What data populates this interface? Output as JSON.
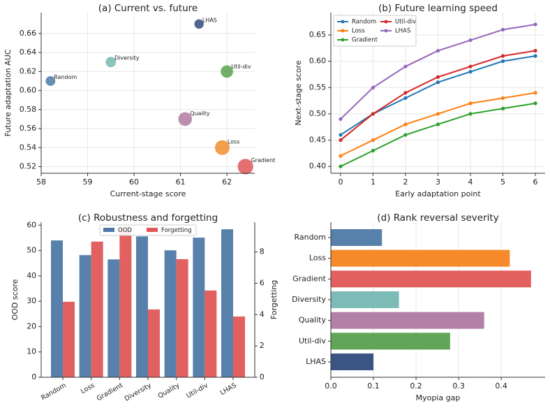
{
  "chart_data": [
    {
      "type": "scatter",
      "title": "(a) Current vs. future",
      "xlabel": "Current-stage score",
      "ylabel": "Future adaptation AUC",
      "labels": [
        "Random",
        "Diversity",
        "LHAS",
        "Util-div",
        "Quality",
        "Loss",
        "Gradient"
      ],
      "x": [
        58.2,
        59.5,
        61.4,
        62.0,
        61.1,
        61.9,
        62.4
      ],
      "values": [
        0.61,
        0.63,
        0.67,
        0.62,
        0.57,
        0.54,
        0.52
      ],
      "sizes": [
        0.12,
        0.16,
        0.1,
        0.28,
        0.36,
        0.42,
        0.47
      ],
      "colors": [
        "#4e79a7",
        "#76b7b2",
        "#2f4b7c",
        "#59a14f",
        "#b07aa1",
        "#f28e2b",
        "#e15759"
      ],
      "xlim": [
        58,
        62.6
      ],
      "xticks": [
        58,
        59,
        60,
        61,
        62
      ],
      "ylim": [
        0.513,
        0.682
      ],
      "yticks": [
        0.52,
        0.54,
        0.56,
        0.58,
        {
          "value": 0.6,
          "label": "0.60"
        },
        0.62,
        0.64,
        0.66
      ],
      "grid": true
    },
    {
      "type": "line",
      "title": "(b) Future learning speed",
      "xlabel": "Early adaptation point",
      "ylabel": "Next-stage score",
      "x": [
        0,
        1,
        2,
        3,
        4,
        5,
        6
      ],
      "series": [
        {
          "name": "Random",
          "color": "#1f77b4",
          "values": [
            0.46,
            0.5,
            0.53,
            0.56,
            0.58,
            0.6,
            0.61
          ]
        },
        {
          "name": "Loss",
          "color": "#ff7f0e",
          "values": [
            0.42,
            0.45,
            0.48,
            0.5,
            0.52,
            0.53,
            0.54
          ]
        },
        {
          "name": "Gradient",
          "color": "#2ca02c",
          "values": [
            0.4,
            0.43,
            0.46,
            0.48,
            0.5,
            0.51,
            0.52
          ]
        },
        {
          "name": "Util-div",
          "color": "#d62728",
          "values": [
            0.45,
            0.5,
            0.54,
            0.57,
            0.59,
            0.61,
            0.62
          ]
        },
        {
          "name": "LHAS",
          "color": "#9467bd",
          "values": [
            0.49,
            0.55,
            0.59,
            0.62,
            0.64,
            0.66,
            0.67
          ]
        }
      ],
      "xlim": [
        -0.3,
        6.3
      ],
      "xticks": [
        0,
        1,
        2,
        3,
        4,
        5,
        6
      ],
      "ylim": [
        0.387,
        0.6925
      ],
      "yticks": [
        {
          "value": 0.4,
          "label": "0.40"
        },
        0.45,
        {
          "value": 0.5,
          "label": "0.50"
        },
        0.55,
        {
          "value": 0.6,
          "label": "0.60"
        },
        0.65
      ],
      "grid": true,
      "legend": "upper left"
    },
    {
      "type": "bar",
      "title": "(c) Robustness and forgetting",
      "ylabel": "OOD score",
      "y2label": "Forgetting",
      "categories": [
        "Random",
        "Loss",
        "Gradient",
        "Diversity",
        "Quality",
        "Util-div",
        "LHAS"
      ],
      "series": [
        {
          "name": "OOD",
          "color": "#4e79a7",
          "values": [
            54.0,
            48.2,
            46.5,
            55.6,
            50.1,
            55.1,
            58.4
          ]
        },
        {
          "name": "Forgetting",
          "color": "#e15759",
          "axis": "y2",
          "values": [
            4.82,
            8.66,
            9.46,
            4.33,
            7.54,
            5.54,
            3.88
          ]
        }
      ],
      "ylim": [
        0,
        61.2
      ],
      "yticks": [
        0,
        10,
        20,
        30,
        40,
        50,
        60
      ],
      "y2lim": [
        0,
        9.9
      ],
      "y2ticks": [
        0,
        2,
        4,
        6,
        8
      ],
      "grid": false,
      "legend": "upper center"
    },
    {
      "type": "barh",
      "title": "(d) Rank reversal severity",
      "xlabel": "Myopia gap",
      "categories": [
        "Random",
        "Loss",
        "Gradient",
        "Diversity",
        "Quality",
        "Util-div",
        "LHAS"
      ],
      "values": [
        0.12,
        0.42,
        0.47,
        0.16,
        0.36,
        0.28,
        0.1
      ],
      "colors": [
        "#4e79a7",
        "#f5841f",
        "#e15759",
        "#76b7b2",
        "#b07aa1",
        "#59a14f",
        "#2f4b7c"
      ],
      "xlim": [
        0,
        0.503
      ],
      "xticks": [
        {
          "value": 0,
          "label": "0.0"
        },
        0.1,
        0.2,
        0.3,
        0.4
      ],
      "grid": true
    }
  ]
}
